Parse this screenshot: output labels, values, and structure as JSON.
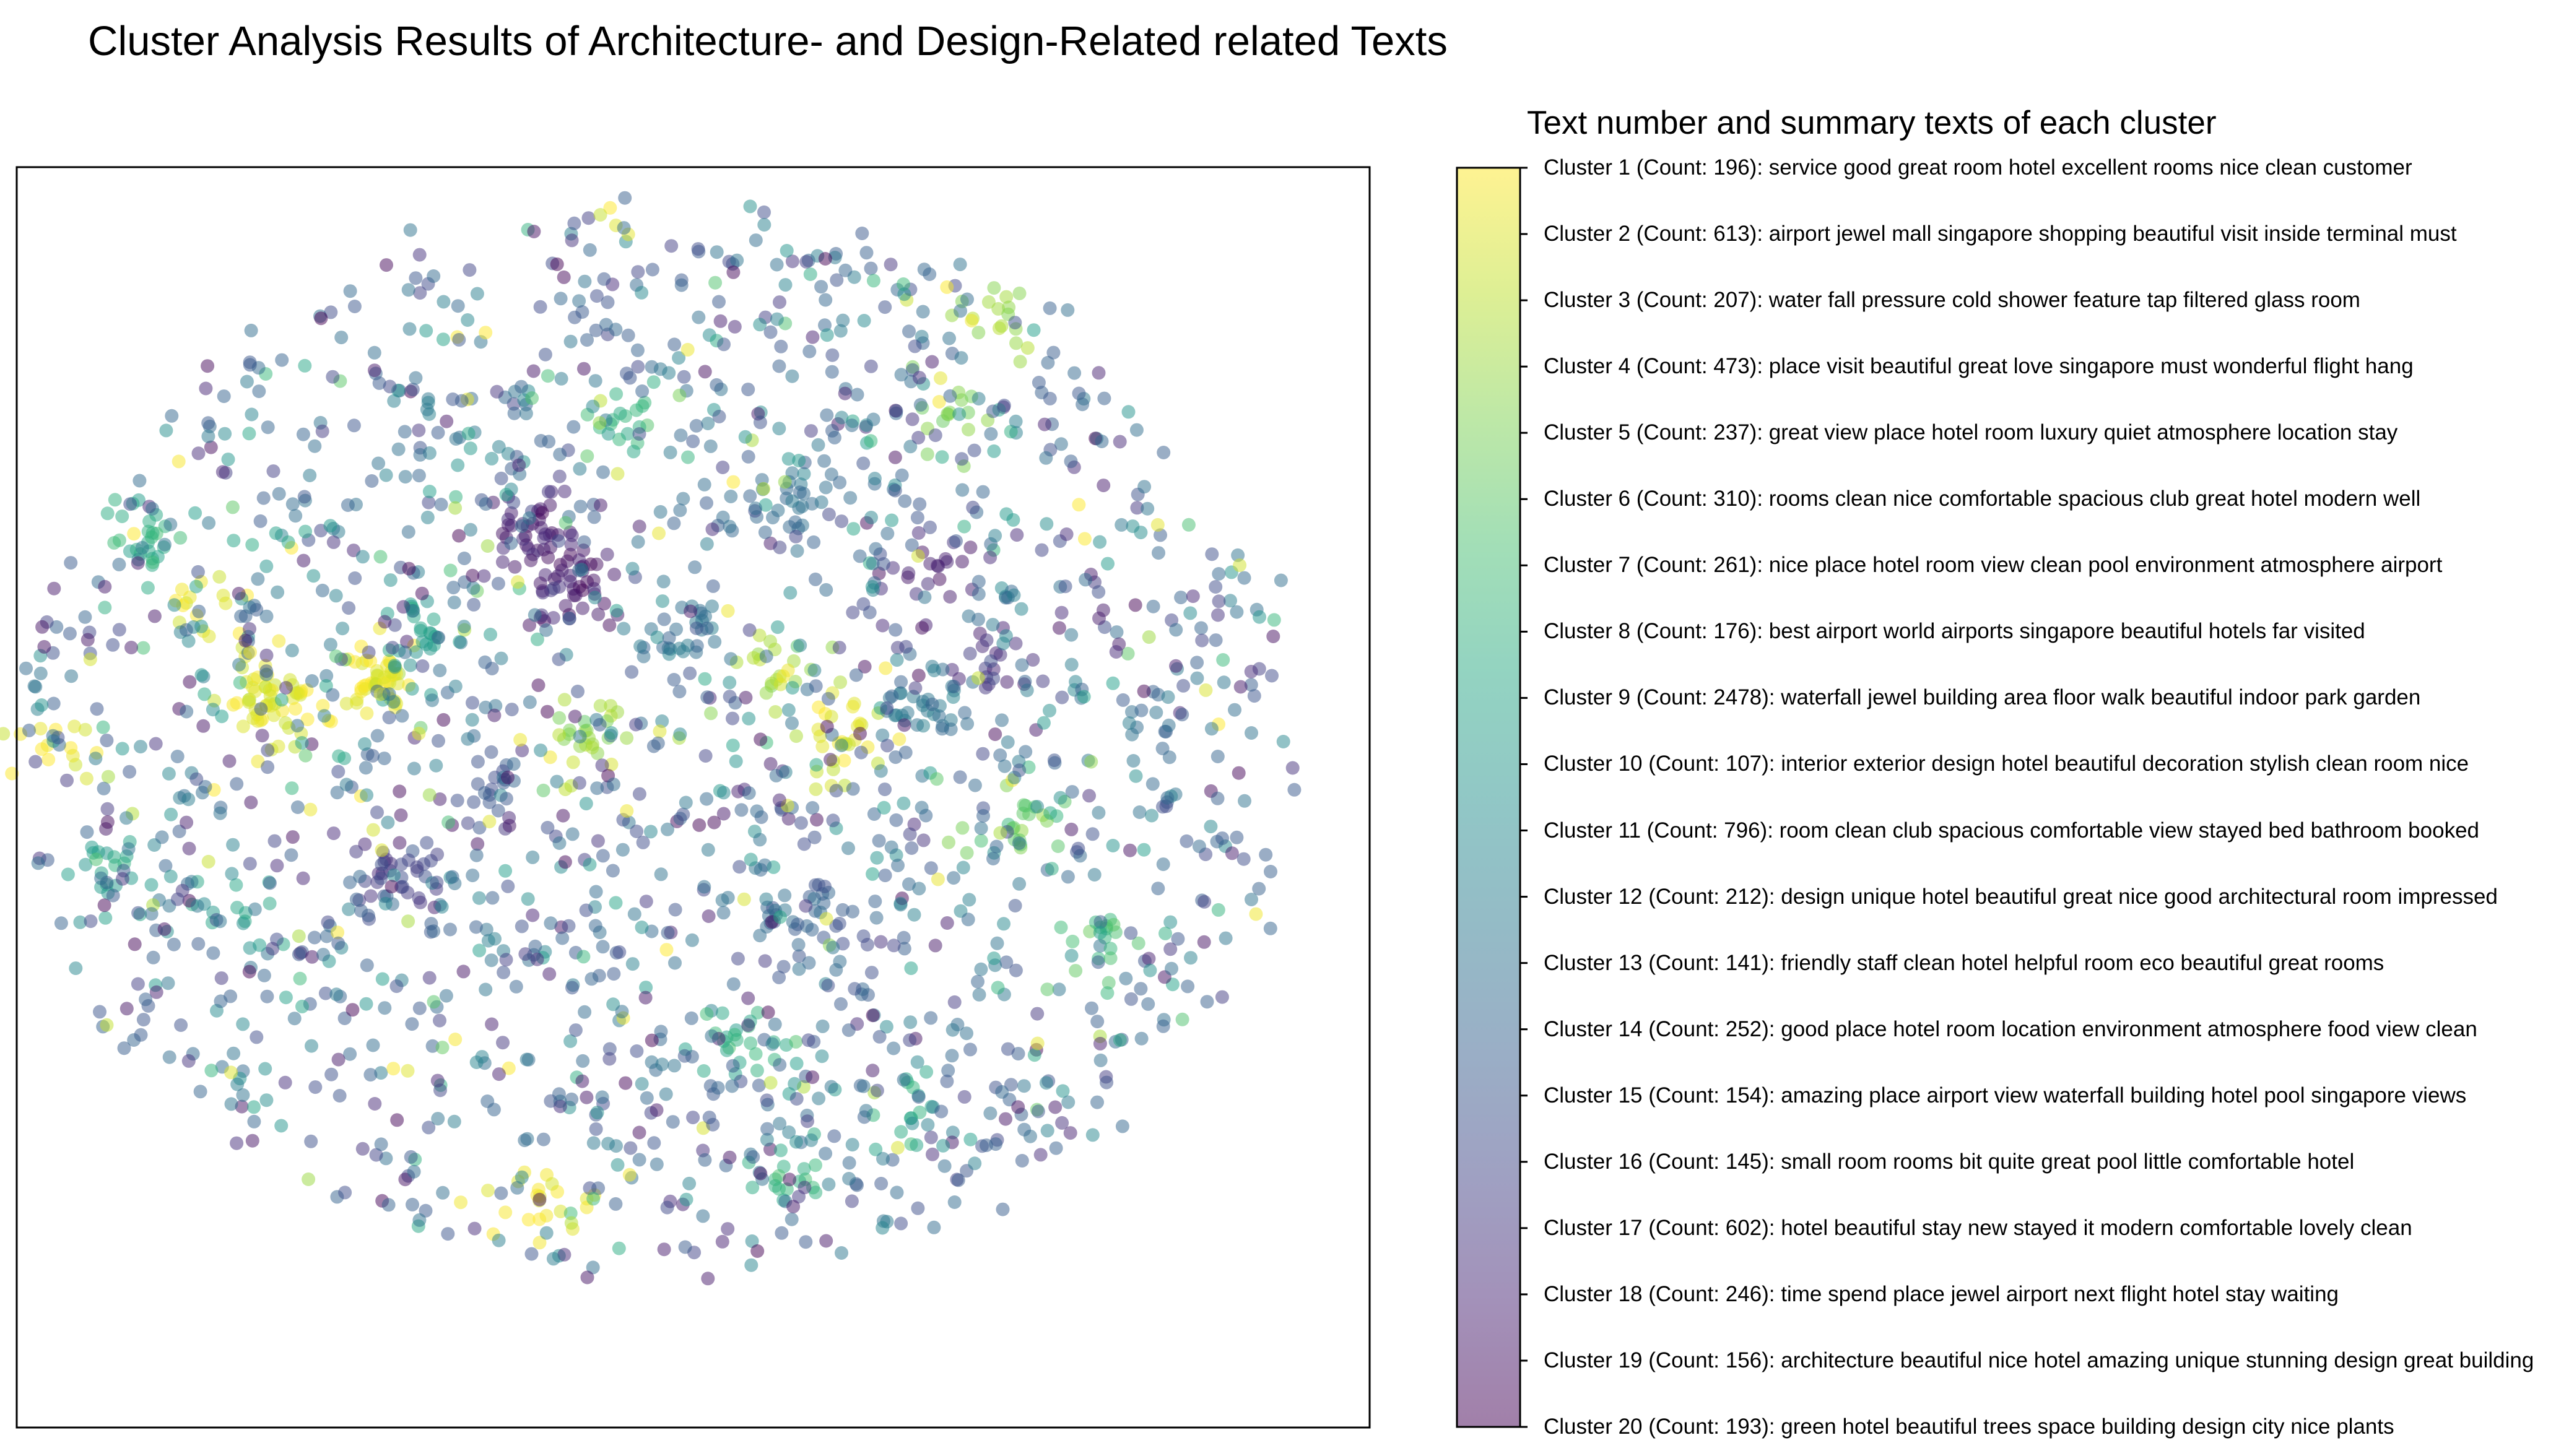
{
  "chart_data": {
    "type": "scatter",
    "title": "Cluster Analysis Results of Architecture- and Design-Related related Texts",
    "legend_title": "Text number and summary texts of each cluster",
    "xlabel": "",
    "ylabel": "",
    "grid": false,
    "x_ticks": "none",
    "y_ticks": "none",
    "legend_position": "right (colorbar)",
    "colormap": "viridis_r",
    "marker_alpha": 0.5,
    "clusters": [
      {
        "id": 1,
        "label": "Cluster 1 (Count: 196): service good great room hotel excellent rooms nice clean customer"
      },
      {
        "id": 2,
        "label": "Cluster 2 (Count: 613): airport jewel mall singapore shopping beautiful visit inside terminal must"
      },
      {
        "id": 3,
        "label": "Cluster 3 (Count: 207): water fall pressure cold shower feature tap filtered glass room"
      },
      {
        "id": 4,
        "label": "Cluster 4 (Count: 473): place visit beautiful great love singapore must wonderful flight hang"
      },
      {
        "id": 5,
        "label": "Cluster 5 (Count: 237): great view place hotel room luxury quiet atmosphere location stay"
      },
      {
        "id": 6,
        "label": "Cluster 6 (Count: 310): rooms clean nice comfortable spacious club great hotel modern well"
      },
      {
        "id": 7,
        "label": "Cluster 7 (Count: 261): nice place hotel room view clean pool environment atmosphere airport"
      },
      {
        "id": 8,
        "label": "Cluster 8 (Count: 176): best airport world airports singapore beautiful hotels far visited"
      },
      {
        "id": 9,
        "label": "Cluster 9 (Count: 2478): waterfall jewel building area floor walk beautiful indoor park garden"
      },
      {
        "id": 10,
        "label": "Cluster 10 (Count: 107): interior exterior design hotel beautiful decoration stylish clean room nice"
      },
      {
        "id": 11,
        "label": "Cluster 11 (Count: 796): room clean club spacious comfortable view stayed bed bathroom booked"
      },
      {
        "id": 12,
        "label": "Cluster 12 (Count: 212): design unique hotel beautiful great nice good architectural room impressed"
      },
      {
        "id": 13,
        "label": "Cluster 13 (Count: 141): friendly staff clean hotel helpful room eco beautiful great rooms"
      },
      {
        "id": 14,
        "label": "Cluster 14 (Count: 252): good place hotel room location environment atmosphere food view clean"
      },
      {
        "id": 15,
        "label": "Cluster 15 (Count: 154): amazing place airport view waterfall building hotel pool singapore views"
      },
      {
        "id": 16,
        "label": "Cluster 16 (Count: 145): small room rooms bit quite great pool little comfortable hotel"
      },
      {
        "id": 17,
        "label": "Cluster 17 (Count: 602): hotel beautiful stay new stayed it modern comfortable lovely clean"
      },
      {
        "id": 18,
        "label": "Cluster 18 (Count: 246): time spend place jewel airport next flight hotel stay waiting"
      },
      {
        "id": 19,
        "label": "Cluster 19 (Count: 156): architecture beautiful nice hotel amazing unique stunning design great building"
      },
      {
        "id": 20,
        "label": "Cluster 20 (Count: 193): green hotel beautiful trees space building design city nice plants"
      }
    ],
    "x_range": [
      -1,
      1
    ],
    "y_range": [
      -1,
      1
    ],
    "point_count_rendered": 2600,
    "dense_clumps": [
      {
        "x": -0.19,
        "y": 0.39,
        "value": 0.08,
        "n": 40
      },
      {
        "x": -0.13,
        "y": 0.29,
        "value": 0.06,
        "n": 45
      },
      {
        "x": 0.44,
        "y": 0.33,
        "value": 0.1,
        "n": 18
      },
      {
        "x": 0.53,
        "y": 0.15,
        "value": 0.12,
        "n": 18
      },
      {
        "x": 0.42,
        "y": 0.07,
        "value": 0.4,
        "n": 30
      },
      {
        "x": -0.41,
        "y": -0.24,
        "value": 0.18,
        "n": 30
      },
      {
        "x": 0.22,
        "y": -0.32,
        "value": 0.3,
        "n": 30
      },
      {
        "x": -0.6,
        "y": 0.08,
        "value": 0.95,
        "n": 55
      },
      {
        "x": -0.44,
        "y": 0.12,
        "value": 0.96,
        "n": 45
      },
      {
        "x": 0.29,
        "y": 0.0,
        "value": 0.95,
        "n": 30
      },
      {
        "x": -0.1,
        "y": 0.02,
        "value": 0.85,
        "n": 25
      },
      {
        "x": -0.79,
        "y": 0.38,
        "value": 0.62,
        "n": 25
      },
      {
        "x": -0.86,
        "y": -0.24,
        "value": 0.55,
        "n": 20
      },
      {
        "x": 0.45,
        "y": 0.59,
        "value": 0.8,
        "n": 15
      },
      {
        "x": 0.11,
        "y": -0.54,
        "value": 0.6,
        "n": 20
      },
      {
        "x": 0.02,
        "y": 0.19,
        "value": 0.4,
        "n": 25
      },
      {
        "x": -0.26,
        "y": -0.09,
        "value": 0.25,
        "n": 15
      },
      {
        "x": 0.57,
        "y": -0.13,
        "value": 0.75,
        "n": 20
      },
      {
        "x": -0.93,
        "y": -0.01,
        "value": 0.98,
        "n": 15
      },
      {
        "x": -0.17,
        "y": -0.84,
        "value": 0.97,
        "n": 20
      },
      {
        "x": 0.52,
        "y": 0.79,
        "value": 0.85,
        "n": 15
      },
      {
        "x": 0.21,
        "y": -0.8,
        "value": 0.65,
        "n": 15
      },
      {
        "x": 0.69,
        "y": -0.37,
        "value": 0.7,
        "n": 15
      },
      {
        "x": 0.4,
        "y": -0.67,
        "value": 0.6,
        "n": 12
      },
      {
        "x": -0.05,
        "y": 0.6,
        "value": 0.65,
        "n": 20
      },
      {
        "x": -0.36,
        "y": 0.2,
        "value": 0.55,
        "n": 25
      },
      {
        "x": 0.19,
        "y": 0.14,
        "value": 0.88,
        "n": 20
      },
      {
        "x": -0.64,
        "y": -0.31,
        "value": 0.6,
        "n": 12
      },
      {
        "x": -0.7,
        "y": 0.25,
        "value": 0.95,
        "n": 15
      },
      {
        "x": 0.21,
        "y": 0.45,
        "value": 0.35,
        "n": 18
      }
    ]
  }
}
